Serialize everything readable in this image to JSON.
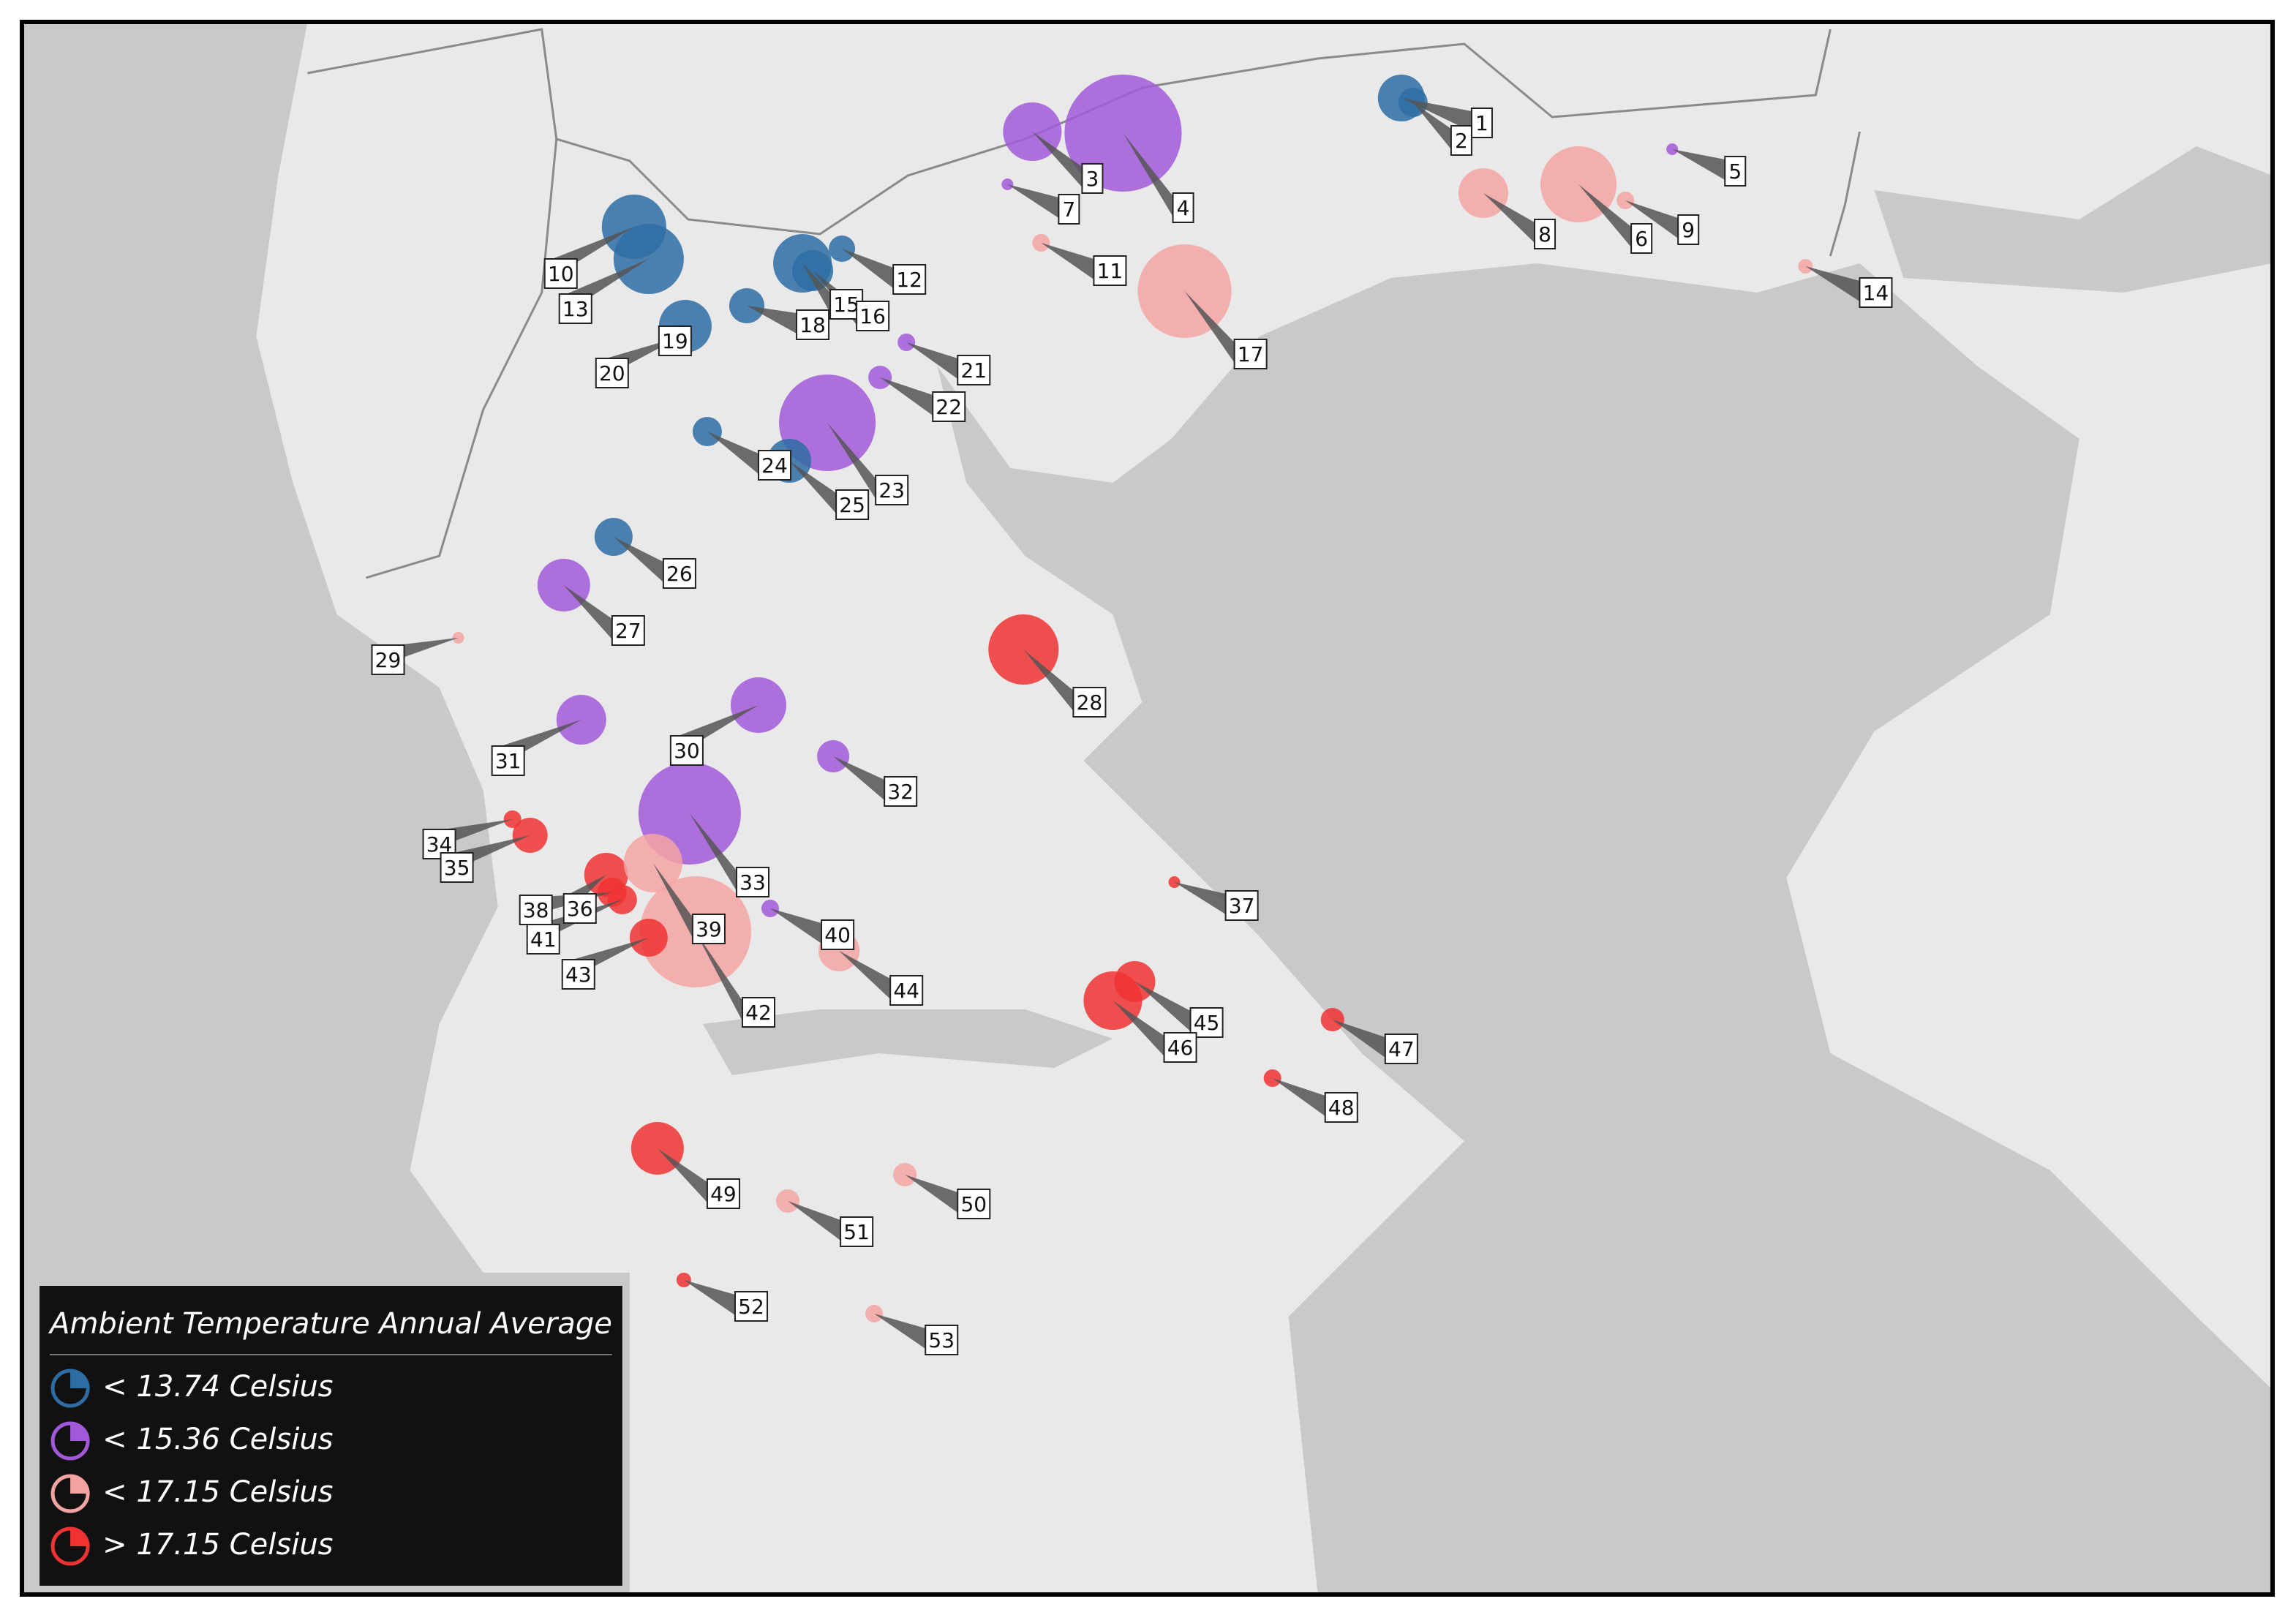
{
  "legend": {
    "title": "Ambient Temperature Annual Average",
    "items": [
      {
        "label": "< 13.74 Celsius",
        "color": "#2e6da4"
      },
      {
        "label": "< 15.36 Celsius",
        "color": "#a259d9"
      },
      {
        "label": "< 17.15 Celsius",
        "color": "#f4a3a3"
      },
      {
        "label": "> 17.15 Celsius",
        "color": "#f03232"
      }
    ]
  },
  "stations": [
    {
      "label": "1",
      "color": "#2e6da4"
    },
    {
      "label": "2",
      "color": "#2e6da4"
    },
    {
      "label": "3",
      "color": "#a259d9"
    },
    {
      "label": "4",
      "color": "#a259d9"
    },
    {
      "label": "5",
      "color": "#a259d9"
    },
    {
      "label": "6",
      "color": "#f4a3a3"
    },
    {
      "label": "7",
      "color": "#a259d9"
    },
    {
      "label": "8",
      "color": "#f4a3a3"
    },
    {
      "label": "9",
      "color": "#f4a3a3"
    },
    {
      "label": "10",
      "color": "#2e6da4"
    },
    {
      "label": "11",
      "color": "#f4a3a3"
    },
    {
      "label": "12",
      "color": "#2e6da4"
    },
    {
      "label": "13",
      "color": "#2e6da4"
    },
    {
      "label": "14",
      "color": "#f4a3a3"
    },
    {
      "label": "15",
      "color": "#2e6da4"
    },
    {
      "label": "16",
      "color": "#2e6da4"
    },
    {
      "label": "17",
      "color": "#f4a3a3"
    },
    {
      "label": "18",
      "color": "#2e6da4"
    },
    {
      "label": "19",
      "color": "#2e6da4"
    },
    {
      "label": "20",
      "color": "#2e6da4"
    },
    {
      "label": "21",
      "color": "#a259d9"
    },
    {
      "label": "22",
      "color": "#a259d9"
    },
    {
      "label": "23",
      "color": "#a259d9"
    },
    {
      "label": "24",
      "color": "#2e6da4"
    },
    {
      "label": "25",
      "color": "#2e6da4"
    },
    {
      "label": "26",
      "color": "#2e6da4"
    },
    {
      "label": "27",
      "color": "#a259d9"
    },
    {
      "label": "28",
      "color": "#f03232"
    },
    {
      "label": "29",
      "color": "#f4a3a3"
    },
    {
      "label": "30",
      "color": "#a259d9"
    },
    {
      "label": "31",
      "color": "#a259d9"
    },
    {
      "label": "32",
      "color": "#a259d9"
    },
    {
      "label": "33",
      "color": "#a259d9"
    },
    {
      "label": "34",
      "color": "#f03232"
    },
    {
      "label": "35",
      "color": "#f03232"
    },
    {
      "label": "36",
      "color": "#f03232"
    },
    {
      "label": "37",
      "color": "#f03232"
    },
    {
      "label": "38",
      "color": "#f03232"
    },
    {
      "label": "39",
      "color": "#f4a3a3"
    },
    {
      "label": "40",
      "color": "#a259d9"
    },
    {
      "label": "41",
      "color": "#f03232"
    },
    {
      "label": "42",
      "color": "#f4a3a3"
    },
    {
      "label": "43",
      "color": "#f03232"
    },
    {
      "label": "44",
      "color": "#f4a3a3"
    },
    {
      "label": "45",
      "color": "#f03232"
    },
    {
      "label": "46",
      "color": "#f03232"
    },
    {
      "label": "47",
      "color": "#f03232"
    },
    {
      "label": "48",
      "color": "#f03232"
    },
    {
      "label": "49",
      "color": "#f03232"
    },
    {
      "label": "50",
      "color": "#f4a3a3"
    },
    {
      "label": "51",
      "color": "#f4a3a3"
    },
    {
      "label": "52",
      "color": "#f03232"
    },
    {
      "label": "53",
      "color": "#f4a3a3"
    }
  ]
}
